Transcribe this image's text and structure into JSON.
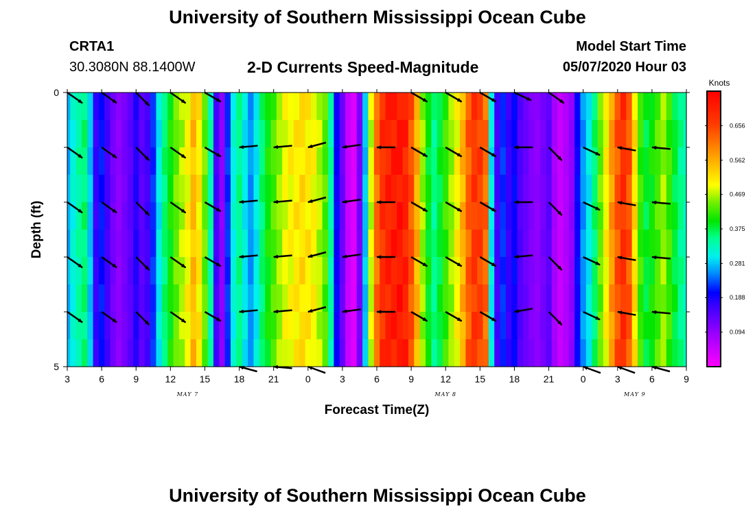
{
  "header": {
    "title": "University of Southern Mississippi Ocean Cube",
    "station_id": "CRTA1",
    "station_coords": "30.3080N 88.1400W",
    "plot_title": "2-D Currents Speed-Magnitude",
    "model_start_label": "Model Start Time",
    "model_start_value": "05/07/2020 Hour 03"
  },
  "footer": {
    "title": "University of Southern Mississippi Ocean Cube"
  },
  "chart_data": {
    "type": "heatmap",
    "title": "2-D Currents Speed-Magnitude",
    "xlabel": "Forecast Time(Z)",
    "ylabel": "Depth (ft)",
    "x_unit": "forecast hour since 05/07/2020 03Z",
    "xlim": [
      0,
      54
    ],
    "x_ticks": [
      {
        "h": 0,
        "label": "3"
      },
      {
        "h": 3,
        "label": "6"
      },
      {
        "h": 6,
        "label": "9"
      },
      {
        "h": 9,
        "label": "12"
      },
      {
        "h": 12,
        "label": "15"
      },
      {
        "h": 15,
        "label": "18"
      },
      {
        "h": 18,
        "label": "21"
      },
      {
        "h": 21,
        "label": "0"
      },
      {
        "h": 24,
        "label": "3"
      },
      {
        "h": 27,
        "label": "6"
      },
      {
        "h": 30,
        "label": "9"
      },
      {
        "h": 33,
        "label": "12"
      },
      {
        "h": 36,
        "label": "15"
      },
      {
        "h": 39,
        "label": "18"
      },
      {
        "h": 42,
        "label": "21"
      },
      {
        "h": 45,
        "label": "0"
      },
      {
        "h": 48,
        "label": "3"
      },
      {
        "h": 51,
        "label": "6"
      },
      {
        "h": 54,
        "label": "9"
      }
    ],
    "day_labels": [
      {
        "h": 10.5,
        "label": "MAY 7"
      },
      {
        "h": 33,
        "label": "MAY 8"
      },
      {
        "h": 49.5,
        "label": "MAY 9"
      }
    ],
    "ylim": [
      0,
      5
    ],
    "y_tick_labels": [
      {
        "v": 0,
        "label": "0"
      },
      {
        "v": 5,
        "label": "5"
      }
    ],
    "y_minor_ticks": [
      1,
      2,
      3,
      4
    ],
    "colorbar": {
      "unit": "Knots",
      "min": 0.0,
      "max": 0.75,
      "tick_values": [
        0.094,
        0.188,
        0.281,
        0.375,
        0.469,
        0.562,
        0.656
      ],
      "tick_labels": [
        "0.094",
        "0.188",
        "0.281",
        "0.375",
        "0.469",
        "0.562",
        "0.656"
      ]
    },
    "speed_profile": [
      {
        "h": 0.0,
        "s": 0.27
      },
      {
        "h": 0.5,
        "s": 0.31
      },
      {
        "h": 1.0,
        "s": 0.34
      },
      {
        "h": 1.5,
        "s": 0.36
      },
      {
        "h": 2.0,
        "s": 0.28
      },
      {
        "h": 2.5,
        "s": 0.17
      },
      {
        "h": 3.0,
        "s": 0.21
      },
      {
        "h": 3.5,
        "s": 0.16
      },
      {
        "h": 4.0,
        "s": 0.12
      },
      {
        "h": 4.5,
        "s": 0.1
      },
      {
        "h": 5.0,
        "s": 0.12
      },
      {
        "h": 5.5,
        "s": 0.14
      },
      {
        "h": 6.0,
        "s": 0.18
      },
      {
        "h": 6.5,
        "s": 0.14
      },
      {
        "h": 7.0,
        "s": 0.16
      },
      {
        "h": 7.5,
        "s": 0.22
      },
      {
        "h": 8.0,
        "s": 0.3
      },
      {
        "h": 8.5,
        "s": 0.36
      },
      {
        "h": 9.0,
        "s": 0.4
      },
      {
        "h": 9.5,
        "s": 0.44
      },
      {
        "h": 10.0,
        "s": 0.47
      },
      {
        "h": 10.5,
        "s": 0.5
      },
      {
        "h": 11.0,
        "s": 0.55
      },
      {
        "h": 11.5,
        "s": 0.51
      },
      {
        "h": 12.0,
        "s": 0.44
      },
      {
        "h": 12.5,
        "s": 0.34
      },
      {
        "h": 13.0,
        "s": 0.16
      },
      {
        "h": 13.5,
        "s": 0.1
      },
      {
        "h": 14.0,
        "s": 0.22
      },
      {
        "h": 14.5,
        "s": 0.31
      },
      {
        "h": 15.0,
        "s": 0.35
      },
      {
        "h": 15.5,
        "s": 0.3
      },
      {
        "h": 16.0,
        "s": 0.26
      },
      {
        "h": 16.5,
        "s": 0.3
      },
      {
        "h": 17.0,
        "s": 0.36
      },
      {
        "h": 17.5,
        "s": 0.4
      },
      {
        "h": 18.0,
        "s": 0.43
      },
      {
        "h": 18.5,
        "s": 0.46
      },
      {
        "h": 19.0,
        "s": 0.49
      },
      {
        "h": 19.5,
        "s": 0.5
      },
      {
        "h": 20.0,
        "s": 0.51
      },
      {
        "h": 20.5,
        "s": 0.52
      },
      {
        "h": 21.0,
        "s": 0.51
      },
      {
        "h": 21.5,
        "s": 0.5
      },
      {
        "h": 22.0,
        "s": 0.47
      },
      {
        "h": 22.5,
        "s": 0.43
      },
      {
        "h": 23.0,
        "s": 0.34
      },
      {
        "h": 23.5,
        "s": 0.2
      },
      {
        "h": 24.0,
        "s": 0.13
      },
      {
        "h": 24.5,
        "s": 0.05
      },
      {
        "h": 25.0,
        "s": 0.03
      },
      {
        "h": 25.5,
        "s": 0.12
      },
      {
        "h": 26.0,
        "s": 0.28
      },
      {
        "h": 26.5,
        "s": 0.48
      },
      {
        "h": 27.0,
        "s": 0.62
      },
      {
        "h": 27.5,
        "s": 0.68
      },
      {
        "h": 28.0,
        "s": 0.7
      },
      {
        "h": 28.5,
        "s": 0.71
      },
      {
        "h": 29.0,
        "s": 0.72
      },
      {
        "h": 29.5,
        "s": 0.7
      },
      {
        "h": 30.0,
        "s": 0.64
      },
      {
        "h": 30.5,
        "s": 0.56
      },
      {
        "h": 31.0,
        "s": 0.46
      },
      {
        "h": 31.5,
        "s": 0.39
      },
      {
        "h": 32.0,
        "s": 0.35
      },
      {
        "h": 32.5,
        "s": 0.38
      },
      {
        "h": 33.0,
        "s": 0.42
      },
      {
        "h": 33.5,
        "s": 0.46
      },
      {
        "h": 34.0,
        "s": 0.5
      },
      {
        "h": 34.5,
        "s": 0.56
      },
      {
        "h": 35.0,
        "s": 0.63
      },
      {
        "h": 35.5,
        "s": 0.67
      },
      {
        "h": 36.0,
        "s": 0.66
      },
      {
        "h": 36.5,
        "s": 0.62
      },
      {
        "h": 37.0,
        "s": 0.3
      },
      {
        "h": 37.5,
        "s": 0.16
      },
      {
        "h": 38.0,
        "s": 0.22
      },
      {
        "h": 38.5,
        "s": 0.17
      },
      {
        "h": 39.0,
        "s": 0.2
      },
      {
        "h": 39.5,
        "s": 0.15
      },
      {
        "h": 40.0,
        "s": 0.13
      },
      {
        "h": 40.5,
        "s": 0.11
      },
      {
        "h": 41.0,
        "s": 0.1
      },
      {
        "h": 41.5,
        "s": 0.12
      },
      {
        "h": 42.0,
        "s": 0.14
      },
      {
        "h": 42.5,
        "s": 0.08
      },
      {
        "h": 43.0,
        "s": 0.05
      },
      {
        "h": 43.5,
        "s": 0.07
      },
      {
        "h": 44.0,
        "s": 0.1
      },
      {
        "h": 44.5,
        "s": 0.2
      },
      {
        "h": 45.0,
        "s": 0.26
      },
      {
        "h": 45.5,
        "s": 0.3
      },
      {
        "h": 46.0,
        "s": 0.36
      },
      {
        "h": 46.5,
        "s": 0.44
      },
      {
        "h": 47.0,
        "s": 0.5
      },
      {
        "h": 47.5,
        "s": 0.58
      },
      {
        "h": 48.0,
        "s": 0.64
      },
      {
        "h": 48.5,
        "s": 0.68
      },
      {
        "h": 49.0,
        "s": 0.64
      },
      {
        "h": 49.5,
        "s": 0.52
      },
      {
        "h": 50.0,
        "s": 0.42
      },
      {
        "h": 50.5,
        "s": 0.38
      },
      {
        "h": 51.0,
        "s": 0.4
      },
      {
        "h": 51.5,
        "s": 0.43
      },
      {
        "h": 52.0,
        "s": 0.46
      },
      {
        "h": 52.5,
        "s": 0.42
      },
      {
        "h": 53.0,
        "s": 0.38
      },
      {
        "h": 53.5,
        "s": 0.35
      },
      {
        "h": 54.0,
        "s": 0.33
      }
    ],
    "vector_hours": [
      0,
      3,
      6,
      9,
      12,
      15,
      18,
      21,
      24,
      27,
      30,
      33,
      36,
      39,
      42,
      45,
      48,
      51
    ],
    "vector_depths": [
      0,
      1,
      2,
      3,
      4,
      5
    ],
    "vector_directions_deg": [
      [
        35,
        35,
        45,
        35,
        30,
        0,
        0,
        0,
        0,
        0,
        30,
        30,
        30,
        25,
        35,
        0,
        0,
        0
      ],
      [
        35,
        35,
        45,
        35,
        30,
        -5,
        -5,
        -15,
        -8,
        0,
        30,
        30,
        30,
        0,
        45,
        25,
        10,
        5
      ],
      [
        35,
        35,
        45,
        35,
        30,
        -5,
        -5,
        -15,
        -8,
        0,
        30,
        30,
        30,
        0,
        45,
        25,
        10,
        5
      ],
      [
        35,
        35,
        45,
        35,
        30,
        -5,
        -5,
        -15,
        -8,
        0,
        30,
        30,
        30,
        -5,
        45,
        25,
        10,
        5
      ],
      [
        35,
        35,
        45,
        35,
        30,
        -5,
        -5,
        -15,
        -8,
        0,
        30,
        30,
        30,
        -10,
        45,
        25,
        10,
        5
      ],
      [
        0,
        0,
        0,
        0,
        0,
        -15,
        -5,
        -20,
        0,
        0,
        0,
        0,
        0,
        0,
        0,
        -20,
        -20,
        -15
      ]
    ],
    "vector_present": [
      [
        1,
        1,
        1,
        1,
        1,
        0,
        0,
        0,
        0,
        0,
        1,
        1,
        1,
        1,
        1,
        0,
        0,
        0
      ],
      [
        1,
        1,
        1,
        1,
        1,
        1,
        1,
        1,
        1,
        1,
        1,
        1,
        1,
        1,
        1,
        1,
        1,
        1
      ],
      [
        1,
        1,
        1,
        1,
        1,
        1,
        1,
        1,
        1,
        1,
        1,
        1,
        1,
        1,
        1,
        1,
        1,
        1
      ],
      [
        1,
        1,
        1,
        1,
        1,
        1,
        1,
        1,
        1,
        1,
        1,
        1,
        1,
        1,
        1,
        1,
        1,
        1
      ],
      [
        1,
        1,
        1,
        1,
        1,
        1,
        1,
        1,
        1,
        1,
        1,
        1,
        1,
        1,
        1,
        1,
        1,
        1
      ],
      [
        0,
        0,
        0,
        0,
        0,
        1,
        1,
        1,
        0,
        0,
        0,
        0,
        0,
        0,
        0,
        1,
        1,
        1
      ]
    ]
  }
}
